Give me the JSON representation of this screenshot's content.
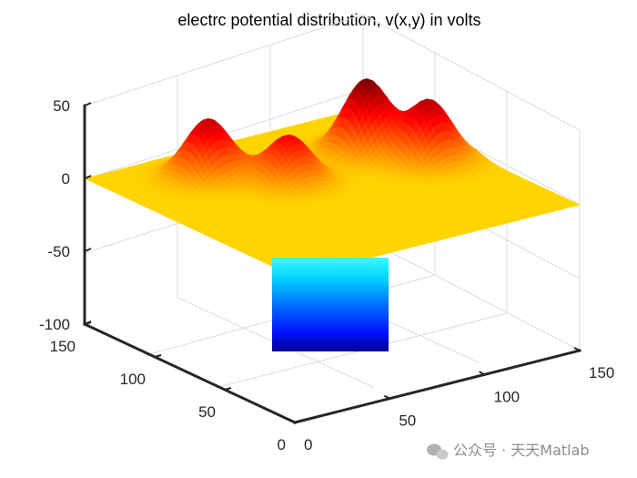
{
  "chart_data": {
    "type": "surface",
    "title": "electrc potential distribution, v(x,y) in volts",
    "xlabel": "",
    "ylabel": "",
    "zlabel": "",
    "xlim": [
      0,
      150
    ],
    "ylim": [
      0,
      150
    ],
    "zlim": [
      -100,
      50
    ],
    "x_ticks": [
      "0",
      "50",
      "100",
      "150"
    ],
    "y_ticks": [
      "0",
      "50",
      "100",
      "150"
    ],
    "z_ticks": [
      "-100",
      "-50",
      "0",
      "50"
    ],
    "colormap": "jet",
    "grid": true,
    "base_level": 0,
    "peaks": [
      {
        "x": 43,
        "y": 120,
        "height": 40
      },
      {
        "x": 67,
        "y": 95,
        "height": 32
      },
      {
        "x": 115,
        "y": 105,
        "height": 50
      },
      {
        "x": 130,
        "y": 80,
        "height": 42
      }
    ],
    "well": {
      "x_range": [
        92,
        130
      ],
      "y_range": [
        4,
        18
      ],
      "depth": -100
    }
  },
  "watermark": {
    "text": "公众号 · 天天Matlab",
    "icon": "wechat-icon"
  }
}
